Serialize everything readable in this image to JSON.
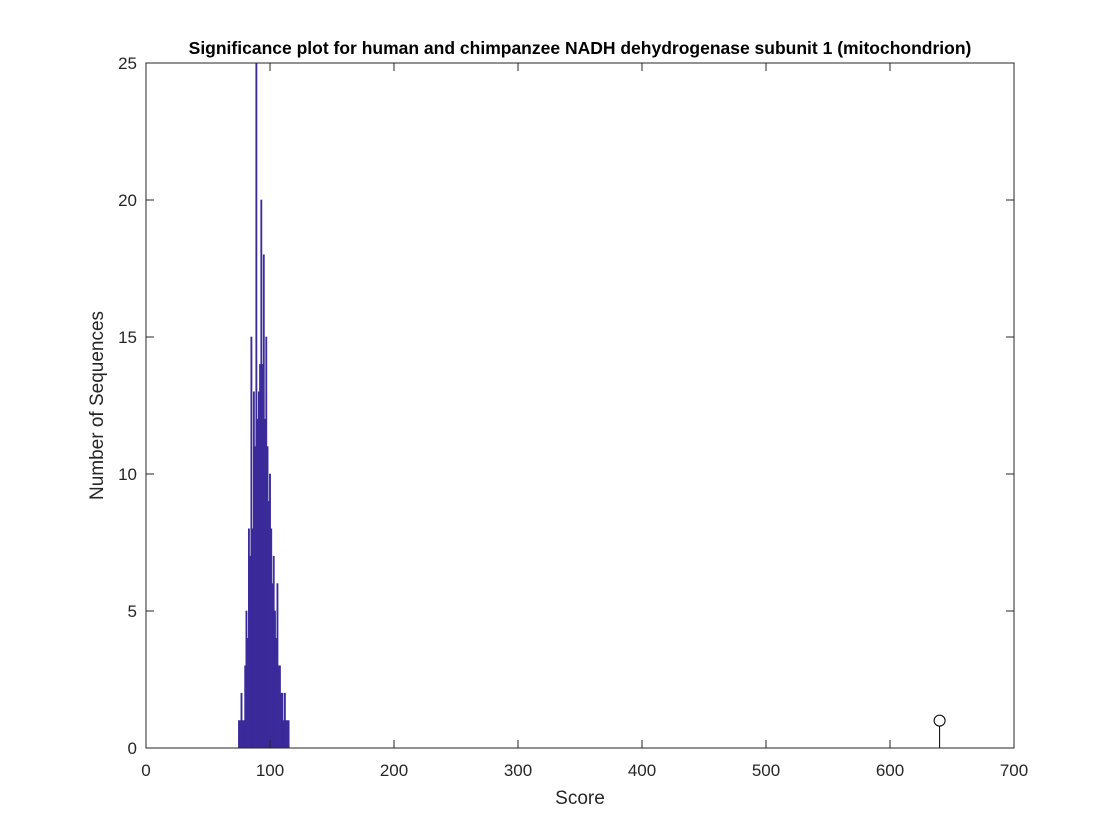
{
  "chart_data": {
    "type": "bar",
    "title": "Significance plot for human and chimpanzee NADH dehydrogenase subunit 1 (mitochondrion)",
    "xlabel": "Score",
    "ylabel": "Number of Sequences",
    "xlim": [
      0,
      700
    ],
    "ylim": [
      0,
      25
    ],
    "xticks": [
      0,
      100,
      200,
      300,
      400,
      500,
      600,
      700
    ],
    "yticks": [
      0,
      5,
      10,
      15,
      20,
      25
    ],
    "grid": false,
    "bar_color": "#3a2a9a",
    "histogram": {
      "name": "",
      "x": [
        75,
        76,
        77,
        78,
        79,
        80,
        81,
        82,
        83,
        84,
        85,
        86,
        87,
        88,
        89,
        90,
        91,
        92,
        93,
        94,
        95,
        96,
        97,
        98,
        99,
        100,
        101,
        102,
        103,
        104,
        105,
        106,
        107,
        108,
        109,
        110,
        111,
        112,
        113,
        114,
        115
      ],
      "values": [
        1,
        1,
        2,
        1,
        1,
        3,
        5,
        4,
        8,
        7,
        15,
        8,
        13,
        11,
        25,
        12,
        13,
        14,
        20,
        14,
        18,
        12,
        15,
        11,
        9,
        10,
        8,
        6,
        7,
        5,
        4,
        6,
        3,
        3,
        2,
        2,
        1,
        2,
        1,
        1,
        1
      ]
    },
    "stem": {
      "x": 640,
      "y": 1,
      "marker": "circle",
      "color": "#000000"
    }
  }
}
